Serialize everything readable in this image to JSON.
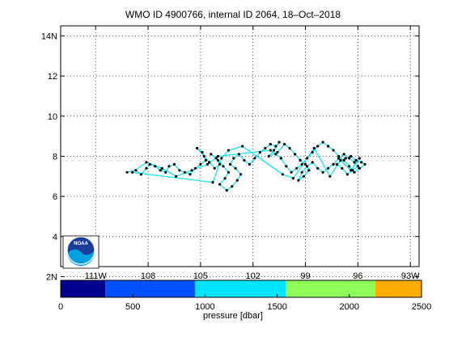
{
  "title": "WMO ID 4900766, internal ID 2064, 18–Oct–2018",
  "map": {
    "lon_range": [
      -113,
      -92.5
    ],
    "lat_range": [
      2.5,
      14.5
    ],
    "lon_ticks": [
      -111,
      -108,
      -105,
      -102,
      -99,
      -96,
      -93
    ],
    "lon_tick_labels": [
      "111W",
      "108",
      "105",
      "102",
      "99",
      "96",
      "93W"
    ],
    "lat_ticks": [
      2,
      4,
      6,
      8,
      10,
      12,
      14
    ],
    "lat_tick_labels": [
      "2N",
      "4",
      "6",
      "8",
      "10",
      "12",
      "14N"
    ],
    "grid": "dotted",
    "track_color": "#00e5ee",
    "point_color": "#000000",
    "logo": "noaa-logo",
    "logo_text": "NOAA"
  },
  "chart_data": {
    "type": "scatter",
    "xlabel": "",
    "ylabel": "",
    "x": [
      -109.2,
      -108.7,
      -108.4,
      -108.1,
      -107.9,
      -107.6,
      -107.3,
      -107.0,
      -106.8,
      -106.5,
      -106.2,
      -105.9,
      -105.6,
      -105.3,
      -105.0,
      -104.7,
      -104.9,
      -105.2,
      -104.8,
      -104.5,
      -104.2,
      -103.9,
      -104.1,
      -104.4,
      -104.0,
      -103.7,
      -103.4,
      -103.6,
      -103.9,
      -103.5,
      -103.2,
      -102.9,
      -102.7,
      -103.0,
      -103.3,
      -103.1,
      -102.8,
      -102.5,
      -102.2,
      -101.9,
      -101.6,
      -101.3,
      -101.0,
      -100.7,
      -100.5,
      -100.8,
      -101.1,
      -100.6,
      -100.2,
      -99.9,
      -99.6,
      -99.3,
      -99.0,
      -98.8,
      -99.1,
      -99.4,
      -99.2,
      -98.9,
      -98.6,
      -98.3,
      -98.0,
      -97.7,
      -97.4,
      -97.1,
      -96.8,
      -96.5,
      -96.2,
      -96.0,
      -96.3,
      -96.6,
      -96.9,
      -97.2,
      -96.7,
      -96.4,
      -96.1,
      -95.8,
      -95.6,
      -95.9,
      -96.2,
      -96.5,
      -96.8,
      -97.1,
      -97.4,
      -97.7,
      -98.0,
      -98.3,
      -98.6,
      -98.9,
      -99.2,
      -99.5,
      -99.8,
      -100.1,
      -100.4,
      -100.7,
      -101.0,
      -104.0,
      -104.6,
      -105.5,
      -106.4,
      -107.2,
      -108.1,
      -108.9,
      -104.3,
      -103.8,
      -103.4,
      -102.6,
      -100.3,
      -99.7,
      -98.5,
      -97.6,
      -97.0,
      -96.4,
      -95.9
    ],
    "y": [
      7.2,
      7.3,
      7.1,
      7.4,
      7.6,
      7.5,
      7.3,
      7.2,
      7.5,
      7.6,
      7.3,
      7.2,
      7.1,
      7.4,
      7.6,
      7.8,
      8.2,
      8.4,
      8.0,
      7.7,
      7.4,
      7.6,
      7.9,
      8.1,
      7.8,
      7.5,
      7.2,
      6.9,
      6.6,
      6.3,
      6.5,
      6.8,
      7.1,
      7.4,
      7.6,
      7.9,
      8.1,
      7.8,
      7.6,
      7.9,
      8.2,
      8.4,
      8.6,
      8.5,
      8.7,
      8.3,
      8.0,
      8.2,
      8.6,
      8.4,
      8.1,
      7.8,
      7.6,
      7.3,
      7.0,
      6.8,
      7.2,
      7.5,
      7.7,
      7.4,
      7.2,
      7.4,
      7.6,
      7.9,
      8.1,
      7.9,
      7.7,
      7.5,
      7.3,
      7.1,
      7.4,
      7.6,
      7.9,
      8.0,
      7.8,
      7.7,
      7.6,
      7.4,
      7.2,
      7.5,
      7.8,
      8.0,
      8.3,
      8.5,
      8.7,
      8.5,
      8.2,
      7.9,
      7.6,
      7.4,
      7.2,
      7.5,
      7.9,
      8.1,
      8.3,
      8.0,
      7.6,
      7.3,
      7.0,
      7.4,
      7.7,
      7.2,
      6.7,
      7.9,
      8.3,
      8.5,
      7.1,
      6.9,
      8.4,
      7.0,
      7.8,
      7.3,
      7.9
    ]
  },
  "colorbar": {
    "range": [
      0,
      2500
    ],
    "ticks": [
      0,
      500,
      1000,
      1500,
      2000,
      2500
    ],
    "tick_labels": [
      "0",
      "500",
      "1000",
      "1500",
      "2000",
      "2500"
    ],
    "segment_bounds": [
      0,
      310,
      930,
      1560,
      2180,
      2500
    ],
    "colors": [
      "#00008f",
      "#0050ff",
      "#00e5ff",
      "#8fff5a",
      "#ffad00"
    ],
    "label": "pressure [dbar]"
  }
}
